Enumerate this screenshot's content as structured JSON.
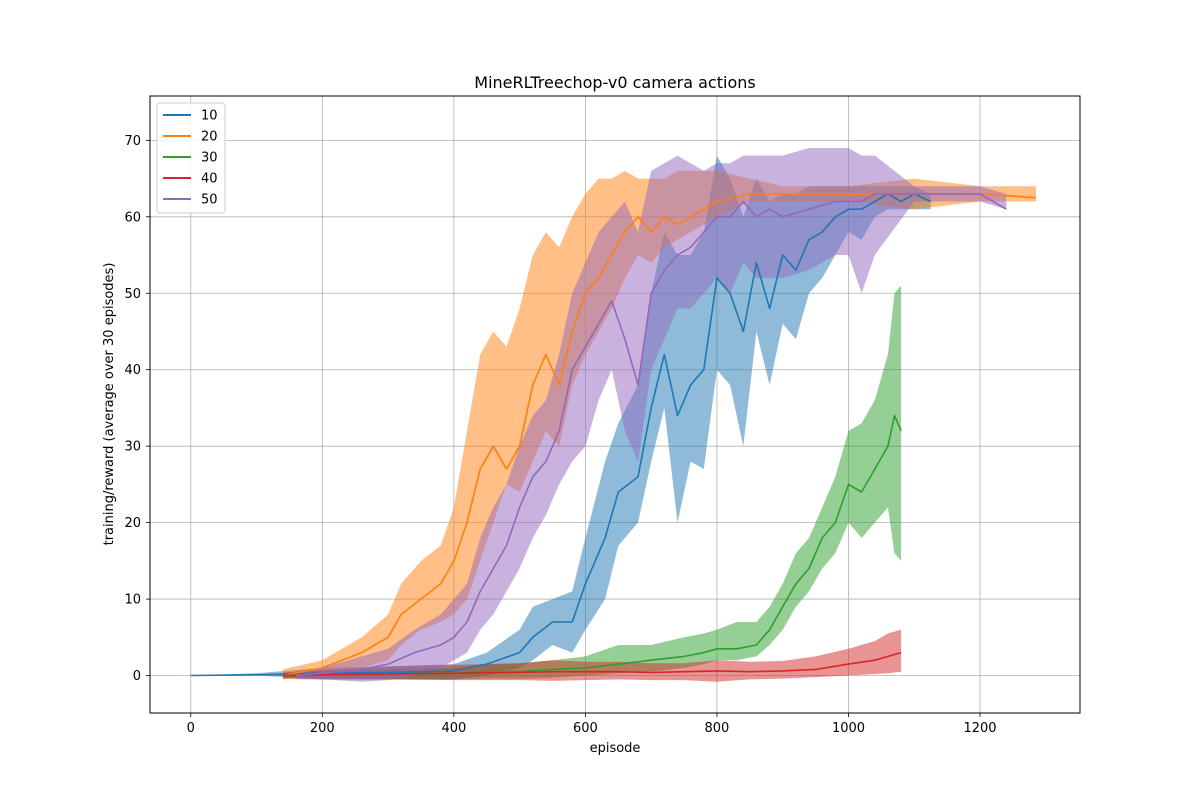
{
  "chart_data": {
    "type": "line",
    "title": "MineRLTreechop-v0 camera actions",
    "xlabel": "episode",
    "ylabel": "training/reward (average over 30 episodes)",
    "xlim": [
      -62,
      1352
    ],
    "ylim": [
      -4.9,
      75.8
    ],
    "xticks": [
      0,
      200,
      400,
      600,
      800,
      1000,
      1200
    ],
    "yticks": [
      0,
      10,
      20,
      30,
      40,
      50,
      60,
      70
    ],
    "grid": true,
    "legend_position": "top-left",
    "shaded_band": "confidence band around each series mean",
    "series": [
      {
        "name": "10",
        "color": "#1f77b4",
        "x": [
          0,
          100,
          200,
          300,
          400,
          450,
          500,
          520,
          550,
          580,
          600,
          630,
          650,
          680,
          700,
          720,
          740,
          760,
          780,
          800,
          820,
          840,
          860,
          880,
          900,
          920,
          940,
          960,
          980,
          1000,
          1020,
          1040,
          1060,
          1080,
          1100,
          1125
        ],
        "mean": [
          0,
          0.1,
          0.3,
          0.4,
          0.6,
          1.5,
          3,
          5,
          7,
          7,
          12,
          18,
          24,
          26,
          35,
          42,
          34,
          38,
          40,
          52,
          50,
          45,
          54,
          48,
          55,
          53,
          57,
          58,
          60,
          61,
          61,
          62,
          63,
          62,
          63,
          62
        ],
        "lower": [
          0,
          0,
          -0.5,
          -0.5,
          -0.5,
          0,
          1,
          2,
          4,
          3,
          6,
          10,
          17,
          20,
          28,
          35,
          20,
          28,
          27,
          40,
          38,
          30,
          45,
          38,
          46,
          44,
          50,
          52,
          55,
          58,
          57,
          60,
          61,
          61,
          61,
          61
        ],
        "upper": [
          0,
          0.3,
          1,
          1.2,
          1.5,
          3,
          6,
          9,
          10,
          11,
          18,
          28,
          33,
          38,
          50,
          58,
          55,
          55,
          58,
          68,
          65,
          60,
          65,
          62,
          63,
          63,
          64,
          64,
          64,
          64,
          64,
          64,
          64,
          64,
          64,
          63
        ]
      },
      {
        "name": "20",
        "color": "#ff7f0e",
        "x": [
          140,
          200,
          260,
          300,
          320,
          350,
          380,
          400,
          420,
          440,
          460,
          480,
          500,
          520,
          540,
          560,
          580,
          600,
          620,
          640,
          660,
          680,
          700,
          720,
          740,
          760,
          780,
          800,
          850,
          900,
          1000,
          1100,
          1200,
          1285
        ],
        "mean": [
          0,
          1,
          3,
          5,
          8,
          10,
          12,
          15,
          20,
          27,
          30,
          27,
          30,
          38,
          42,
          38,
          45,
          50,
          52,
          55,
          58,
          60,
          58,
          60,
          59,
          60,
          61,
          62,
          63,
          63,
          63,
          63,
          63,
          62.5
        ],
        "lower": [
          -0.5,
          0,
          1,
          2,
          4,
          6,
          7,
          8,
          10,
          15,
          20,
          25,
          24,
          28,
          32,
          30,
          38,
          42,
          45,
          48,
          52,
          55,
          54,
          56,
          57,
          58,
          59,
          60,
          62,
          62,
          62,
          61,
          62,
          62
        ],
        "upper": [
          0.8,
          2,
          5,
          8,
          12,
          15,
          17,
          22,
          32,
          42,
          45,
          43,
          48,
          55,
          58,
          56,
          60,
          63,
          65,
          65,
          66,
          65,
          65,
          65,
          66,
          66,
          66,
          66,
          65,
          64,
          64,
          65,
          64,
          64
        ]
      },
      {
        "name": "30",
        "color": "#2ca02c",
        "x": [
          140,
          200,
          300,
          400,
          450,
          500,
          550,
          600,
          650,
          700,
          750,
          780,
          800,
          830,
          860,
          880,
          900,
          920,
          940,
          960,
          980,
          1000,
          1020,
          1040,
          1060,
          1070,
          1080
        ],
        "mean": [
          0,
          0.1,
          0.2,
          0.3,
          0.5,
          0.5,
          0.8,
          1,
          1.5,
          2,
          2.5,
          3,
          3.5,
          3.5,
          4,
          6,
          9,
          12,
          14,
          18,
          20,
          25,
          24,
          27,
          30,
          34,
          32
        ],
        "lower": [
          -0.3,
          -0.4,
          -0.5,
          -0.5,
          -0.4,
          -0.4,
          -0.3,
          0,
          0.3,
          0.5,
          1,
          1.5,
          2,
          2,
          2.5,
          4,
          6,
          9,
          11,
          14,
          16,
          20,
          18,
          20,
          22,
          16,
          15
        ],
        "upper": [
          0.3,
          0.6,
          0.9,
          1,
          1.5,
          1.6,
          2,
          2.5,
          4,
          4,
          5,
          5.5,
          6,
          7,
          7,
          9,
          12,
          16,
          18,
          22,
          26,
          32,
          33,
          36,
          42,
          50,
          51
        ]
      },
      {
        "name": "40",
        "color": "#d62728",
        "x": [
          140,
          200,
          300,
          400,
          500,
          550,
          600,
          650,
          700,
          750,
          800,
          850,
          900,
          950,
          1000,
          1040,
          1060,
          1080
        ],
        "mean": [
          0,
          0.1,
          0.2,
          0.3,
          0.4,
          0.5,
          0.5,
          0.5,
          0.4,
          0.5,
          0.6,
          0.5,
          0.6,
          0.8,
          1.5,
          2,
          2.5,
          3
        ],
        "lower": [
          -0.4,
          -0.5,
          -0.5,
          -0.6,
          -0.6,
          -0.7,
          -0.6,
          -0.5,
          -0.6,
          -0.6,
          -0.8,
          -0.5,
          -0.4,
          -0.2,
          0,
          0.2,
          0.3,
          0.5
        ],
        "upper": [
          0.4,
          0.7,
          1.2,
          1.4,
          1.6,
          2,
          1.8,
          1.8,
          1.6,
          1.6,
          2,
          1.8,
          1.9,
          2.5,
          3.5,
          4.5,
          5.5,
          6
        ]
      },
      {
        "name": "50",
        "color": "#9467bd",
        "x": [
          160,
          200,
          260,
          300,
          340,
          380,
          400,
          420,
          440,
          460,
          480,
          500,
          520,
          540,
          560,
          580,
          600,
          620,
          640,
          660,
          680,
          700,
          720,
          740,
          760,
          780,
          800,
          820,
          840,
          860,
          880,
          900,
          940,
          980,
          1000,
          1020,
          1040,
          1100,
          1200,
          1240
        ],
        "mean": [
          0,
          0.3,
          0.8,
          1.5,
          3,
          4,
          5,
          7,
          11,
          14,
          17,
          22,
          26,
          28,
          32,
          40,
          43,
          46,
          49,
          44,
          38,
          50,
          53,
          55,
          56,
          58,
          60,
          60,
          62,
          60,
          61,
          60,
          61,
          62,
          62,
          62,
          63,
          63,
          63,
          61
        ],
        "lower": [
          -0.5,
          -0.5,
          -0.8,
          -0.6,
          0,
          1,
          2,
          3,
          6,
          8,
          11,
          14,
          18,
          21,
          25,
          28,
          30,
          36,
          40,
          32,
          28,
          40,
          44,
          48,
          48,
          50,
          52,
          50,
          54,
          52,
          52,
          52,
          53,
          55,
          55,
          50,
          55,
          62,
          62,
          61
        ],
        "upper": [
          0.6,
          1,
          2.5,
          3.5,
          6,
          8,
          10,
          12,
          18,
          22,
          25,
          30,
          34,
          36,
          42,
          50,
          54,
          58,
          60,
          62,
          58,
          66,
          67,
          68,
          67,
          66,
          67,
          67,
          68,
          68,
          68,
          68,
          69,
          69,
          69,
          68,
          68,
          64,
          64,
          63
        ]
      }
    ]
  }
}
